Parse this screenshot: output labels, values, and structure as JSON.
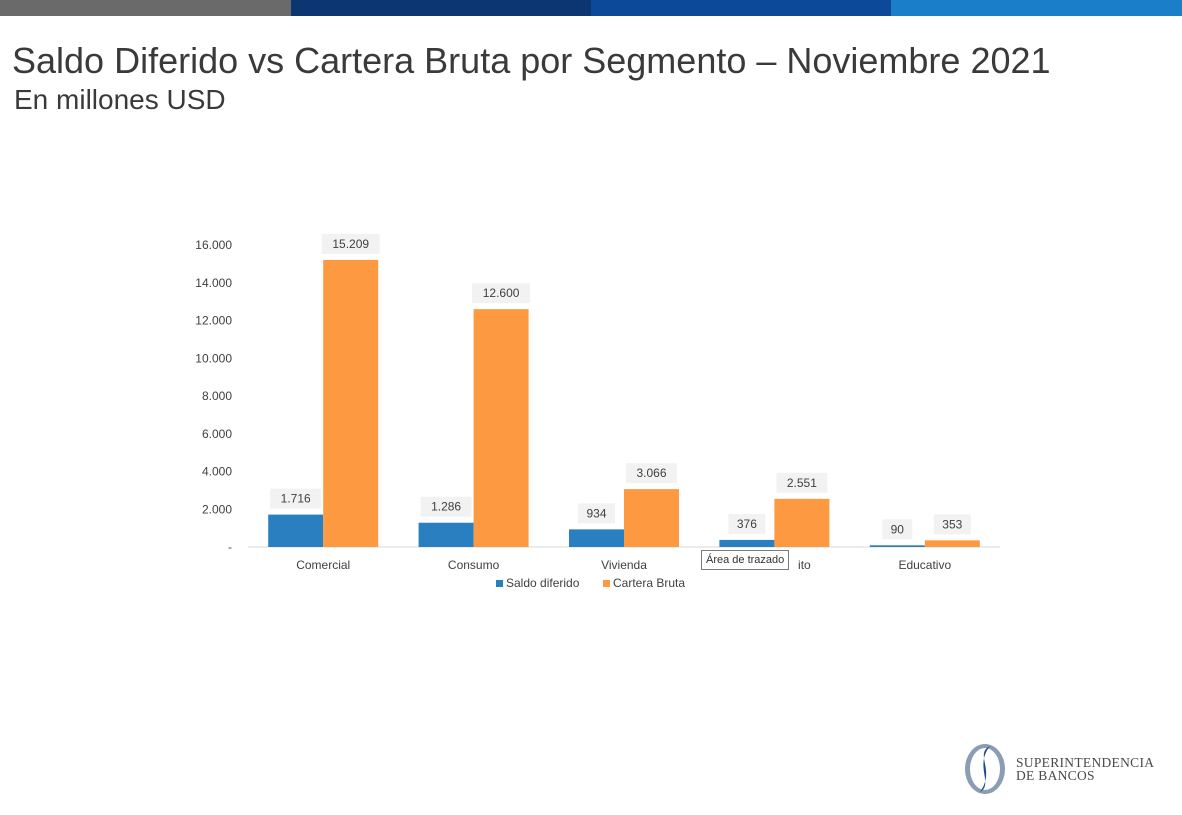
{
  "header": {
    "title": "Saldo Diferido vs Cartera Bruta por Segmento – Noviembre 2021",
    "subtitle": "En millones USD"
  },
  "tooltip": "Área de trazado",
  "logo": {
    "line1": "SUPERINTENDENCIA",
    "line2": "DE BANCOS"
  },
  "colors": {
    "saldo": "#2a7fc1",
    "cartera": "#fd9940",
    "label_bg": "#f2f2f2",
    "axis": "#d9d9d9",
    "text": "#404040"
  },
  "chart_data": {
    "type": "bar",
    "title": "",
    "categories": [
      "Comercial",
      "Consumo",
      "Vivienda",
      "",
      "Educativo"
    ],
    "series": [
      {
        "name": "Saldo diferido",
        "values": [
          1716,
          1286,
          934,
          376,
          90
        ],
        "labels": [
          "1.716",
          "1.286",
          "934",
          "376",
          "90"
        ]
      },
      {
        "name": "Cartera Bruta",
        "values": [
          15209,
          12600,
          3066,
          2551,
          353
        ],
        "labels": [
          "15.209",
          "12.600",
          "3.066",
          "2.551",
          "353"
        ]
      }
    ],
    "y_ticks": [
      0,
      2000,
      4000,
      6000,
      8000,
      10000,
      12000,
      14000,
      16000
    ],
    "y_tick_labels": [
      "-",
      "2.000",
      "4.000",
      "6.000",
      "8.000",
      "10.000",
      "12.000",
      "14.000",
      "16.000"
    ],
    "ylim": [
      0,
      16000
    ],
    "partial_category_label": "ito",
    "grid": false,
    "legend_position": "bottom"
  }
}
